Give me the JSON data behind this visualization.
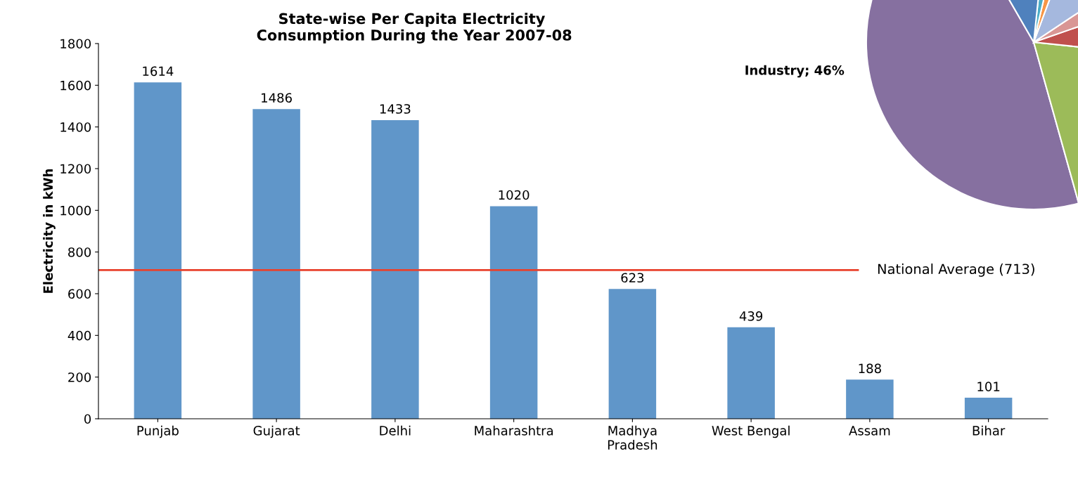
{
  "chart_data": [
    {
      "type": "bar",
      "title": "State-wise Per Capita Electricity\n Consumption During the Year 2007-08",
      "ylabel": "Electricity in kWh",
      "categories": [
        "Punjab",
        "Gujarat",
        "Delhi",
        "Maharashtra",
        "Madhya\nPradesh",
        "West Bengal",
        "Assam",
        "Bihar"
      ],
      "values": [
        1614,
        1486,
        1433,
        1020,
        623,
        439,
        188,
        101
      ],
      "color": "#6096c9",
      "data_labels": true,
      "ylim": [
        0,
        1800
      ],
      "yticks": [
        0,
        200,
        400,
        600,
        800,
        1000,
        1200,
        1400,
        1600,
        1800
      ],
      "grid": false,
      "ref_lines": [
        {
          "axis": "y",
          "value": 713,
          "label": "National Average (713)",
          "color": "#e8412c"
        }
      ]
    },
    {
      "type": "pie",
      "categories": [
        "Industry",
        null,
        null,
        null,
        null,
        null,
        null,
        null
      ],
      "values": [
        46,
        19,
        7,
        4,
        10,
        2,
        2,
        10
      ],
      "colors": [
        "#8670a0",
        "#9cbb59",
        "#c0504d",
        "#d99694",
        "#a5b8de",
        "#f79646",
        "#4bacc6",
        "#4f81bd"
      ],
      "value_labels": [
        "46%",
        null,
        null,
        null,
        null,
        null,
        null,
        null
      ]
    }
  ]
}
